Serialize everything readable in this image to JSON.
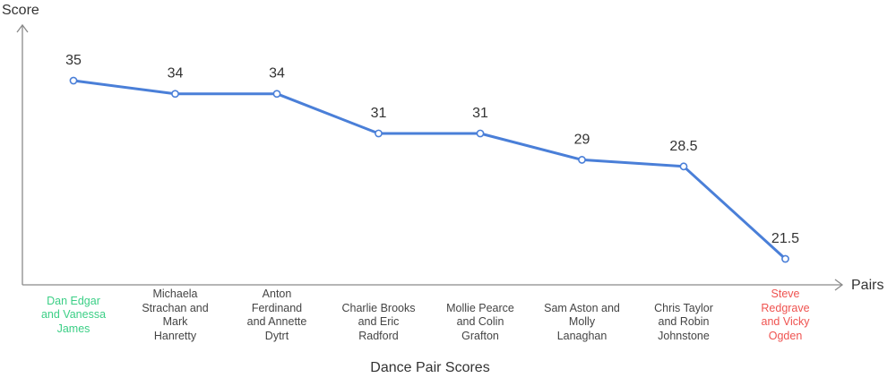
{
  "chart_data": {
    "type": "line",
    "caption": "Dance Pair Scores",
    "ylabel": "Score",
    "xlabel": "Pairs",
    "ylim": [
      20,
      40
    ],
    "grid": false,
    "legend": "none",
    "categories": [
      "Dan Edgar and Vanessa James",
      "Michaela Strachan and Mark Hanretty",
      "Anton Ferdinand and Annette Dytrt",
      "Charlie Brooks and Eric Radford",
      "Mollie Pearce and Colin Grafton",
      "Sam Aston and Molly Lanaghan",
      "Chris Taylor and Robin Johnstone",
      "Steve Redgrave and Vicky Ogden"
    ],
    "series": [
      {
        "values": [
          35,
          34,
          34,
          31,
          31,
          29,
          28.5,
          21.5
        ]
      }
    ],
    "value_labels": [
      "35",
      "34",
      "34",
      "31",
      "31",
      "29",
      "28.5",
      "21.5"
    ],
    "category_colors": [
      "#3ccf86",
      "#444444",
      "#444444",
      "#444444",
      "#444444",
      "#444444",
      "#444444",
      "#ef5350"
    ],
    "line_color": "#4a7fd8",
    "axis_color": "#8a8a8a"
  }
}
